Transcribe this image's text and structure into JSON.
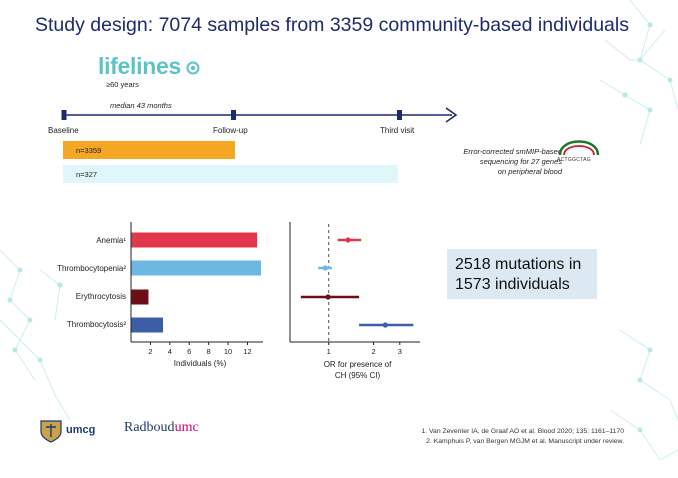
{
  "title": "Study design: 7074 samples from 3359 community-based individuals",
  "logo": {
    "name": "lifelines",
    "age_note": "≥60 years"
  },
  "timeline": {
    "median": "median 43 months",
    "points": [
      "Baseline",
      "Follow-up",
      "Third visit"
    ],
    "bars": [
      {
        "label": "n=3359",
        "color": "#f5a623"
      },
      {
        "label": "n=327",
        "color": "#dff6fa"
      }
    ]
  },
  "sequencing": {
    "note_lines": [
      "Error-corrected smMIP-based",
      "sequencing for 27 genes",
      "on peripheral blood"
    ],
    "sequence": "ACTGGCTAG"
  },
  "chart_data": [
    {
      "type": "bar",
      "orientation": "horizontal",
      "categories": [
        "Anemia¹",
        "Thrombocytopenia²",
        "Erythrocytosis",
        "Thrombocytosis²"
      ],
      "values": [
        13.0,
        13.4,
        1.8,
        3.3
      ],
      "colors": [
        "#e0384a",
        "#6cb8e3",
        "#6b0f15",
        "#3b5ea6"
      ],
      "xticks": [
        "2",
        "4",
        "6",
        "8",
        "10",
        "12"
      ],
      "xlim": [
        0,
        13.6
      ],
      "xlabel": "Individuals (%)"
    },
    {
      "type": "scatter",
      "subtype": "forest",
      "categories": [
        "Anemia¹",
        "Thrombocytopenia²",
        "Erythrocytosis",
        "Thrombocytosis²"
      ],
      "or": [
        1.35,
        0.95,
        0.99,
        2.4
      ],
      "ci_low": [
        1.15,
        0.85,
        0.65,
        1.6
      ],
      "ci_high": [
        1.65,
        1.05,
        1.6,
        3.7
      ],
      "colors": [
        "#e0384a",
        "#6cb8e3",
        "#6b0f15",
        "#3b5ea6"
      ],
      "xscale": "log",
      "xticks": [
        "1",
        "2",
        "3"
      ],
      "xlim": [
        0.55,
        4.1
      ],
      "reference": 1,
      "xlabel_lines": [
        "OR for presence of",
        "CH (95% CI)"
      ]
    }
  ],
  "callout": {
    "text": "2518 mutations in 1573 individuals"
  },
  "logos": {
    "umcg": "umcg",
    "radboud_a": "Radboud",
    "radboud_b": "umc"
  },
  "references": [
    "1. Van Zeventer IA, de Graaf AO et al. Blood 2020; 135: 1161–1170",
    "2. Kamphuis P, van Bergen MGJM et al. Manuscript under review."
  ]
}
